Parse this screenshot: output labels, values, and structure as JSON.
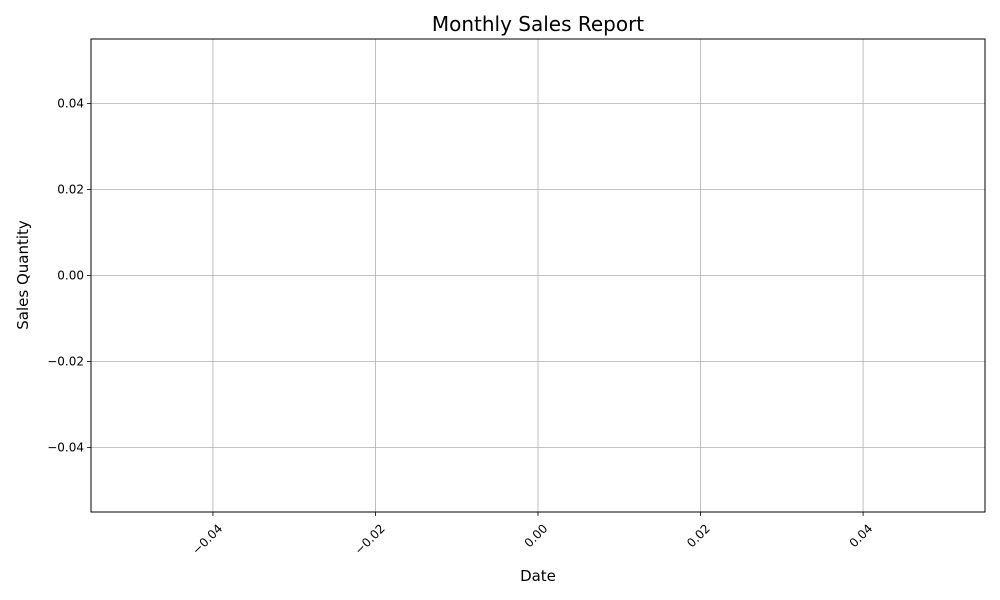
{
  "chart_data": {
    "type": "line",
    "title": "Monthly Sales Report",
    "xlabel": "Date",
    "ylabel": "Sales Quantity",
    "x": [],
    "series": [
      {
        "values": []
      }
    ],
    "xlim": [
      -0.055,
      0.055
    ],
    "ylim": [
      -0.055,
      0.055
    ],
    "x_ticks": [
      -0.04,
      -0.02,
      0.0,
      0.02,
      0.04
    ],
    "x_tick_labels": [
      "−0.04",
      "−0.02",
      "0.00",
      "0.02",
      "0.04"
    ],
    "y_ticks": [
      -0.04,
      -0.02,
      0.0,
      0.02,
      0.04
    ],
    "y_tick_labels": [
      "−0.04",
      "−0.02",
      "0.00",
      "0.02",
      "0.04"
    ],
    "x_tick_rotation": 45,
    "grid": true,
    "colors": {
      "grid": "#b0b0b0",
      "axes": "#000000",
      "background": "#ffffff"
    }
  }
}
